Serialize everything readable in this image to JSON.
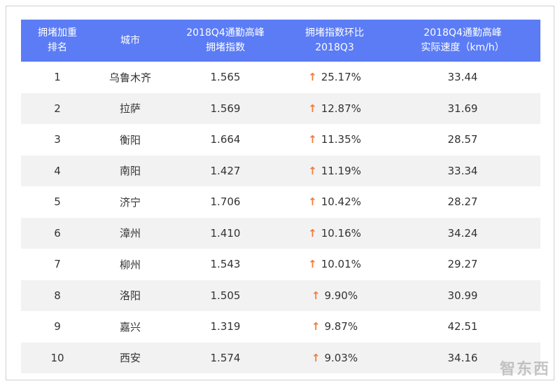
{
  "table": {
    "header": [
      [
        "拥堵加重",
        "排名"
      ],
      [
        "城市"
      ],
      [
        "2018Q4通勤高峰",
        "拥堵指数"
      ],
      [
        "拥堵指数环比",
        "2018Q3"
      ],
      [
        "2018Q4通勤高峰",
        "实际速度（km/h）"
      ]
    ],
    "rows": [
      [
        "1",
        "乌鲁木齐",
        "1.565",
        "25.17%",
        "33.44"
      ],
      [
        "2",
        "拉萨",
        "1.569",
        "12.87%",
        "31.69"
      ],
      [
        "3",
        "衡阳",
        "1.664",
        "11.35%",
        "28.57"
      ],
      [
        "4",
        "南阳",
        "1.427",
        "11.19%",
        "33.34"
      ],
      [
        "5",
        "济宁",
        "1.706",
        "10.42%",
        "28.27"
      ],
      [
        "6",
        "漳州",
        "1.410",
        "10.16%",
        "34.24"
      ],
      [
        "7",
        "柳州",
        "1.543",
        "10.01%",
        "29.27"
      ],
      [
        "8",
        "洛阳",
        "1.505",
        "9.90%",
        "30.99"
      ],
      [
        "9",
        "嘉兴",
        "1.319",
        "9.87%",
        "42.51"
      ],
      [
        "10",
        "西安",
        "1.574",
        "9.03%",
        "34.16"
      ]
    ]
  },
  "watermark": "智东西"
}
